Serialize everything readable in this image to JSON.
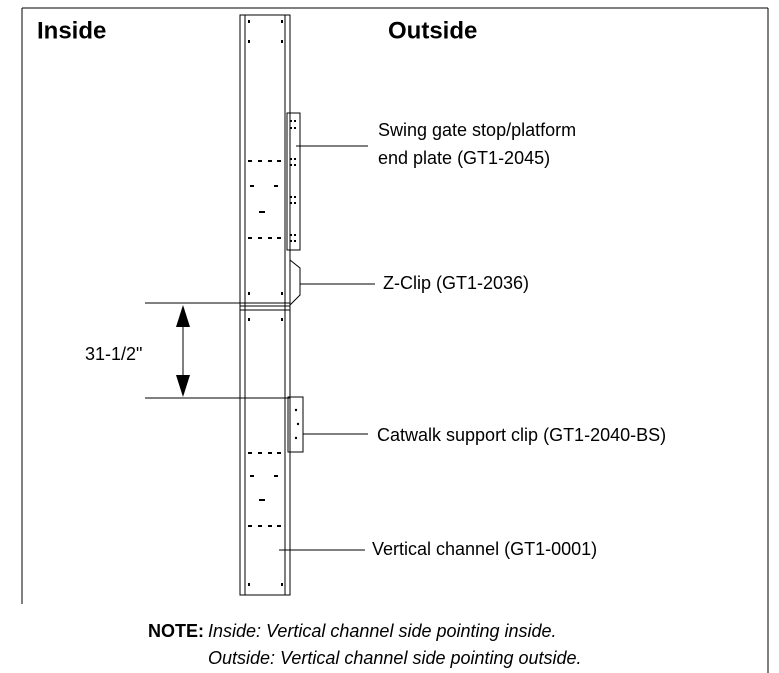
{
  "labels": {
    "inside": "Inside",
    "outside": "Outside"
  },
  "callouts": [
    {
      "lines": [
        "Swing gate stop/platform",
        "end plate (GT1-2045)"
      ]
    },
    {
      "lines": [
        "Z-Clip (GT1-2036)"
      ]
    },
    {
      "lines": [
        "Catwalk support clip (GT1-2040-BS)"
      ]
    },
    {
      "lines": [
        "Vertical channel (GT1-0001)"
      ]
    }
  ],
  "dimension": "31-1/2\"",
  "note": {
    "label": "NOTE:",
    "lines": [
      "Inside: Vertical channel side pointing inside.",
      "Outside: Vertical channel side pointing outside."
    ]
  }
}
